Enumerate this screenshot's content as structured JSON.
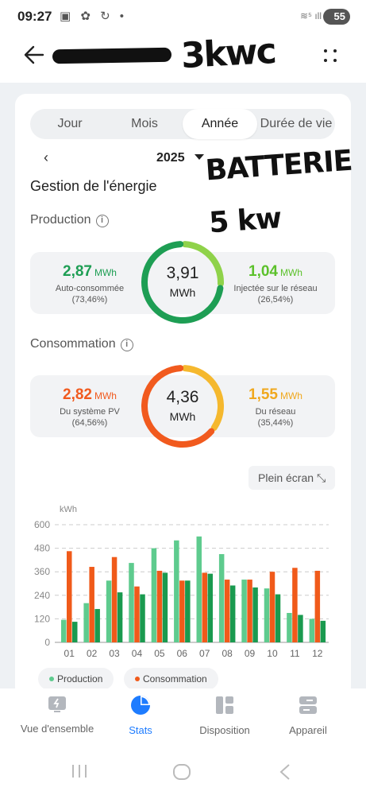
{
  "status": {
    "time": "09:27",
    "icons": "▣ ✿ ↻ •",
    "signal": "≋⁵ ıll",
    "battery": "55"
  },
  "header": {
    "handwritten_note": "3kwc"
  },
  "tabs": [
    {
      "label": "Jour",
      "active": false
    },
    {
      "label": "Mois",
      "active": false
    },
    {
      "label": "Année",
      "active": true
    },
    {
      "label": "Durée de vie",
      "active": false
    }
  ],
  "period": {
    "prev_icon": "‹",
    "year": "2025"
  },
  "handwritten_note2": {
    "line1": "BATTERIE",
    "line2": "5 kw"
  },
  "energy": {
    "title": "Gestion de l'énergie",
    "info_icon": "i",
    "production": {
      "label": "Production",
      "left_value": "2,87",
      "left_unit": "MWh",
      "left_label": "Auto-consommée",
      "left_pct": "(73,46%)",
      "total_value": "3,91",
      "total_unit": "MWh",
      "right_value": "1,04",
      "right_unit": "MWh",
      "right_label": "Injectée sur le réseau",
      "right_pct": "(26,54%)",
      "left_fraction": 0.7346,
      "right_fraction": 0.2654,
      "left_color": "#1e9e54",
      "right_color": "#8fd24a"
    },
    "consumption": {
      "label": "Consommation",
      "left_value": "2,82",
      "left_unit": "MWh",
      "left_label": "Du système PV",
      "left_pct": "(64,56%)",
      "total_value": "4,36",
      "total_unit": "MWh",
      "right_value": "1,55",
      "right_unit": "MWh",
      "right_label": "Du réseau",
      "right_pct": "(35,44%)",
      "left_fraction": 0.6456,
      "right_fraction": 0.3544,
      "left_color": "#f15a1e",
      "right_color": "#f5b82e"
    }
  },
  "fullscreen": {
    "label": "Plein écran",
    "icon": "⤡"
  },
  "chart_data": {
    "type": "bar",
    "ylabel": "kWh",
    "ylim": [
      0,
      600
    ],
    "yticks": [
      0,
      120,
      240,
      360,
      480,
      600
    ],
    "categories": [
      "01",
      "02",
      "03",
      "04",
      "05",
      "06",
      "07",
      "08",
      "09",
      "10",
      "11",
      "12"
    ],
    "series": [
      {
        "name": "Production",
        "color": "#5ecb8e",
        "values": [
          115,
          200,
          315,
          405,
          480,
          520,
          540,
          450,
          320,
          275,
          150,
          120
        ]
      },
      {
        "name": "Consommation",
        "color": "#f05a1a",
        "values": [
          465,
          385,
          435,
          285,
          365,
          315,
          355,
          320,
          320,
          360,
          380,
          365
        ]
      },
      {
        "name": "",
        "color": "#1a9a4f",
        "values": [
          105,
          170,
          255,
          245,
          355,
          315,
          350,
          290,
          280,
          245,
          140,
          110
        ]
      }
    ],
    "legend": [
      "Production",
      "Consommation"
    ]
  },
  "bottom_nav": [
    {
      "label": "Vue d'ensemble",
      "icon": "solar-panel-icon",
      "active": false
    },
    {
      "label": "Stats",
      "icon": "pie-chart-icon",
      "active": true
    },
    {
      "label": "Disposition",
      "icon": "layout-icon",
      "active": false
    },
    {
      "label": "Appareil",
      "icon": "device-icon",
      "active": false
    }
  ]
}
